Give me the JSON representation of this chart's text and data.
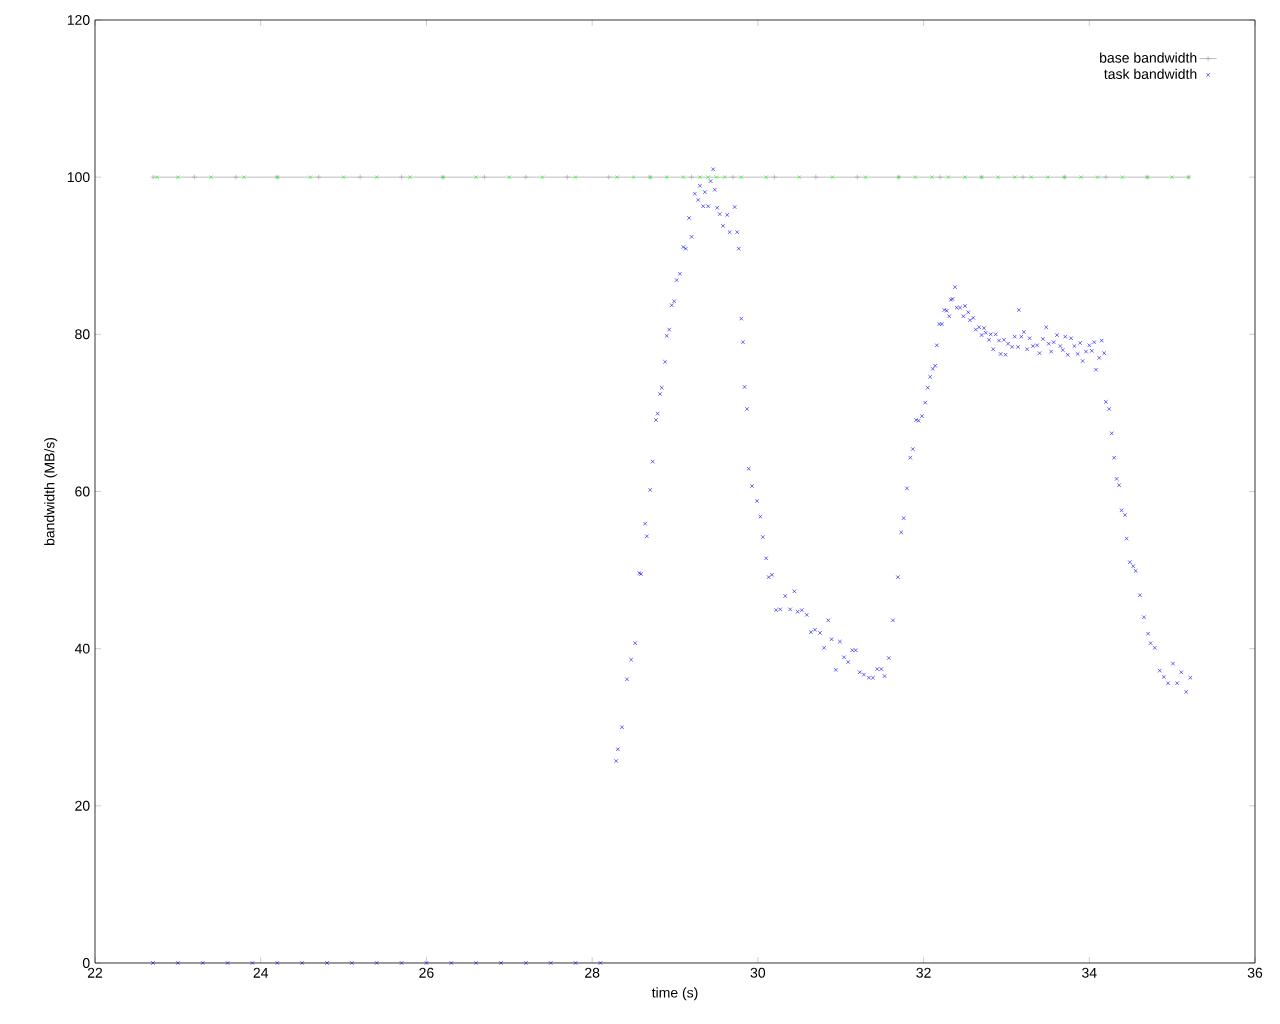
{
  "chart_data": {
    "type": "scatter",
    "xlabel": "time (s)",
    "ylabel": "bandwidth (MB/s)",
    "xlim": [
      22,
      36
    ],
    "ylim": [
      0,
      120
    ],
    "xticks": [
      22,
      24,
      26,
      28,
      30,
      32,
      34,
      36
    ],
    "yticks": [
      0,
      20,
      40,
      60,
      80,
      100,
      120
    ],
    "legend": "top right",
    "series": [
      {
        "name": "base bandwidth",
        "type": "line",
        "color": "#a0a0a0",
        "marker": "cross",
        "line_style": "solid",
        "x": [
          22.7,
          23.2,
          23.7,
          24.2,
          24.7,
          25.2,
          25.7,
          26.2,
          26.7,
          27.2,
          27.7,
          28.2,
          28.7,
          29.2,
          29.7,
          30.2,
          30.7,
          31.2,
          31.7,
          32.2,
          32.7,
          33.2,
          33.7,
          34.2,
          34.7,
          35.2
        ],
        "values": [
          100,
          100,
          100,
          100,
          100,
          100,
          100,
          100,
          100,
          100,
          100,
          100,
          100,
          100,
          100,
          100,
          100,
          100,
          100,
          100,
          100,
          100,
          100,
          100,
          100,
          100
        ]
      },
      {
        "color": "#00ff00",
        "marker": "cross",
        "x": [
          22.75,
          23.0,
          23.4,
          23.8,
          24.2,
          24.6,
          25.0,
          25.4,
          25.8,
          26.2,
          26.6,
          27.0,
          27.4,
          27.8,
          28.3,
          28.5,
          28.7,
          28.9,
          29.1,
          29.3,
          29.4,
          29.5,
          29.6,
          29.8,
          30.1,
          30.5,
          30.9,
          31.3,
          31.7,
          31.9,
          32.1,
          32.3,
          32.5,
          32.7,
          32.9,
          33.1,
          33.3,
          33.5,
          33.7,
          33.9,
          34.1,
          34.4,
          34.7,
          35.0,
          35.2
        ],
        "values": [
          100,
          100,
          100,
          100,
          100,
          100,
          100,
          100,
          100,
          100,
          100,
          100,
          100,
          100,
          100,
          100,
          100,
          100,
          100,
          100,
          100,
          100,
          100,
          100,
          100,
          100,
          100,
          100,
          100,
          100,
          100,
          100,
          100,
          100,
          100,
          100,
          100,
          100,
          100,
          100,
          100,
          100,
          100,
          100,
          100
        ]
      },
      {
        "name": "task bandwidth",
        "color": "#0000ff",
        "marker": "cross",
        "x": [
          22.7,
          23.0,
          23.3,
          23.6,
          23.9,
          24.2,
          24.5,
          24.8,
          25.1,
          25.4,
          25.7,
          26.0,
          26.3,
          26.6,
          26.9,
          27.2,
          27.5,
          27.8,
          28.1,
          28.29,
          28.31,
          28.36,
          28.42,
          28.47,
          28.52,
          28.57,
          28.59,
          28.64,
          28.66,
          28.7,
          28.73,
          28.77,
          28.79,
          28.82,
          28.84,
          28.88,
          28.9,
          28.93,
          28.96,
          28.99,
          29.02,
          29.06,
          29.1,
          29.13,
          29.17,
          29.2,
          29.24,
          29.28,
          29.3,
          29.34,
          29.36,
          29.4,
          29.43,
          29.46,
          29.48,
          29.51,
          29.54,
          29.58,
          29.63,
          29.66,
          29.72,
          29.75,
          29.77,
          29.8,
          29.82,
          29.84,
          29.87,
          29.89,
          29.93,
          29.99,
          30.03,
          30.06,
          30.1,
          30.13,
          30.17,
          30.22,
          30.27,
          30.33,
          30.39,
          30.44,
          30.48,
          30.53,
          30.59,
          30.64,
          30.69,
          30.75,
          30.8,
          30.85,
          30.89,
          30.94,
          30.99,
          31.04,
          31.09,
          31.14,
          31.18,
          31.23,
          31.28,
          31.34,
          31.39,
          31.44,
          31.49,
          31.53,
          31.58,
          31.63,
          31.69,
          31.73,
          31.76,
          31.8,
          31.84,
          31.87,
          31.91,
          31.94,
          31.98,
          32.02,
          32.05,
          32.08,
          32.11,
          32.14,
          32.16,
          32.19,
          32.22,
          32.25,
          32.28,
          32.31,
          32.33,
          32.35,
          32.38,
          32.4,
          32.44,
          32.48,
          32.5,
          32.54,
          32.56,
          32.6,
          32.63,
          32.67,
          32.7,
          32.73,
          32.75,
          32.79,
          32.81,
          32.84,
          32.87,
          32.91,
          32.93,
          32.97,
          32.99,
          33.02,
          33.07,
          33.1,
          33.14,
          33.15,
          33.18,
          33.21,
          33.25,
          33.28,
          33.32,
          33.37,
          33.4,
          33.44,
          33.48,
          33.51,
          33.54,
          33.57,
          33.61,
          33.65,
          33.68,
          33.71,
          33.74,
          33.78,
          33.82,
          33.86,
          33.89,
          33.92,
          33.96,
          34.0,
          34.03,
          34.06,
          34.08,
          34.12,
          34.15,
          34.18,
          34.2,
          34.24,
          34.27,
          34.3,
          34.33,
          34.36,
          34.39,
          34.43,
          34.45,
          34.49,
          34.53,
          34.56,
          34.61,
          34.66,
          34.71,
          34.74,
          34.79,
          34.85,
          34.9,
          34.95,
          35.01,
          35.06,
          35.11,
          35.17,
          35.22
        ],
        "values": [
          0,
          0,
          0,
          0,
          0,
          0,
          0,
          0,
          0,
          0,
          0,
          0,
          0,
          0,
          0,
          0,
          0,
          0,
          0,
          25.7,
          27.2,
          30.0,
          36.1,
          38.6,
          40.7,
          49.6,
          49.5,
          55.9,
          54.3,
          60.2,
          63.8,
          69.1,
          69.9,
          72.4,
          73.2,
          76.5,
          79.8,
          80.6,
          83.7,
          84.2,
          86.9,
          87.7,
          91.1,
          90.9,
          94.8,
          92.4,
          97.9,
          97.1,
          98.9,
          96.3,
          98.1,
          96.3,
          99.5,
          101.0,
          98.4,
          96.1,
          95.3,
          93.8,
          95.2,
          93.0,
          96.2,
          93.0,
          90.9,
          82.0,
          79.0,
          73.3,
          70.5,
          62.9,
          60.7,
          58.8,
          56.8,
          54.2,
          51.5,
          49.1,
          49.4,
          44.9,
          45.0,
          46.7,
          45.0,
          47.3,
          44.7,
          44.9,
          44.3,
          42.1,
          42.4,
          42.0,
          40.1,
          43.6,
          41.2,
          37.3,
          40.9,
          38.9,
          38.3,
          39.8,
          39.8,
          37.0,
          36.7,
          36.3,
          36.3,
          37.4,
          37.4,
          36.5,
          38.8,
          43.6,
          49.1,
          54.8,
          56.6,
          60.4,
          64.3,
          65.4,
          69.1,
          69.0,
          69.6,
          71.3,
          73.2,
          74.6,
          75.6,
          76.0,
          78.6,
          81.3,
          81.3,
          83.1,
          83.0,
          82.3,
          84.4,
          84.5,
          86.0,
          83.4,
          83.4,
          82.3,
          83.6,
          82.8,
          81.8,
          82.1,
          80.6,
          80.9,
          79.9,
          80.8,
          80.2,
          79.3,
          80.0,
          78.1,
          80.0,
          79.2,
          77.5,
          79.3,
          77.4,
          78.8,
          78.4,
          79.7,
          78.4,
          83.1,
          79.7,
          80.3,
          78.1,
          79.5,
          78.5,
          78.6,
          77.6,
          79.4,
          80.9,
          78.8,
          77.8,
          79.0,
          79.9,
          78.5,
          78.0,
          79.7,
          77.4,
          79.5,
          78.5,
          77.5,
          78.9,
          76.6,
          77.8,
          78.6,
          77.9,
          79.0,
          75.5,
          77.0,
          79.2,
          77.6,
          71.4,
          70.5,
          67.4,
          64.3,
          61.6,
          60.8,
          57.6,
          57.0,
          54.0,
          51.0,
          50.5,
          49.9,
          46.8,
          44.0,
          41.9,
          40.7,
          40.1,
          37.2,
          36.4,
          35.6,
          38.1,
          35.6,
          37.0,
          34.5,
          36.3
        ]
      }
    ]
  }
}
